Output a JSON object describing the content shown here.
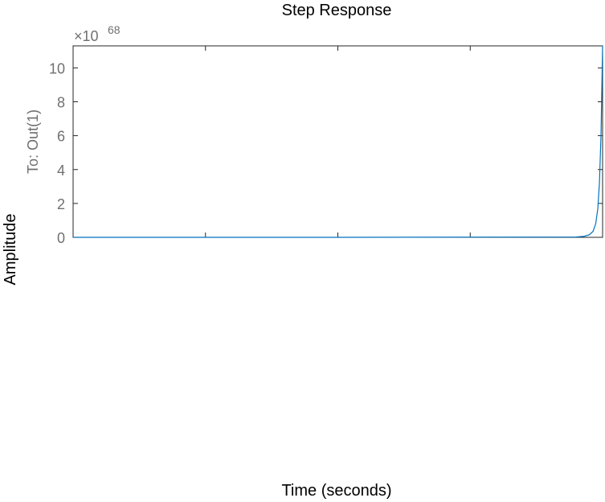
{
  "chart_data": {
    "type": "line",
    "title": "Step Response",
    "xlabel": "Time (seconds)",
    "ylabel": "Amplitude",
    "output_label": "To: Out(1)",
    "y_exponent_prefix": "×10",
    "y_exponent": "68",
    "ylim": [
      0,
      11.3
    ],
    "xlim": [
      0,
      1
    ],
    "y_ticks": [
      0,
      2,
      4,
      6,
      8,
      10
    ],
    "y_tick_labels": [
      "0",
      "2",
      "4",
      "6",
      "8",
      "10"
    ],
    "x_tick_positions": [
      0.25,
      0.5,
      0.75
    ],
    "x_tick_labels_shown": false,
    "grid": false,
    "series": [
      {
        "color": "#0072BD",
        "x": [
          0,
          0.5,
          0.95,
          0.965,
          0.975,
          0.982,
          0.987,
          0.991,
          0.994,
          0.997,
          1.0
        ],
        "y": [
          0,
          0,
          0.02,
          0.06,
          0.15,
          0.35,
          0.8,
          1.7,
          3.2,
          6.0,
          11.3
        ]
      }
    ]
  }
}
